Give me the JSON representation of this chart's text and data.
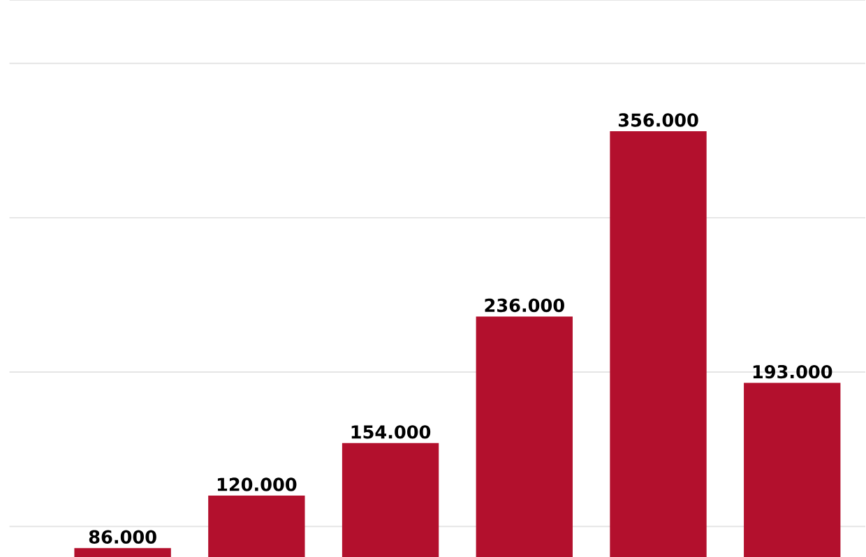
{
  "chart_data": {
    "type": "bar",
    "categories": [
      null,
      null,
      null,
      null,
      null,
      null
    ],
    "values": [
      86000,
      120000,
      154000,
      236000,
      356000,
      193000
    ],
    "value_labels": [
      "86.000",
      "120.000",
      "154.000",
      "236.000",
      "356.000",
      "193.000"
    ],
    "color": "#b3102d",
    "ylim": [
      80000,
      441000
    ],
    "yticks": [
      {
        "value": 100000,
        "label": null
      },
      {
        "value": 200000,
        "label": null
      },
      {
        "value": 300000,
        "label": null
      },
      {
        "value": 400000,
        "label": null
      }
    ],
    "grid": "y",
    "tick_labels": false
  }
}
